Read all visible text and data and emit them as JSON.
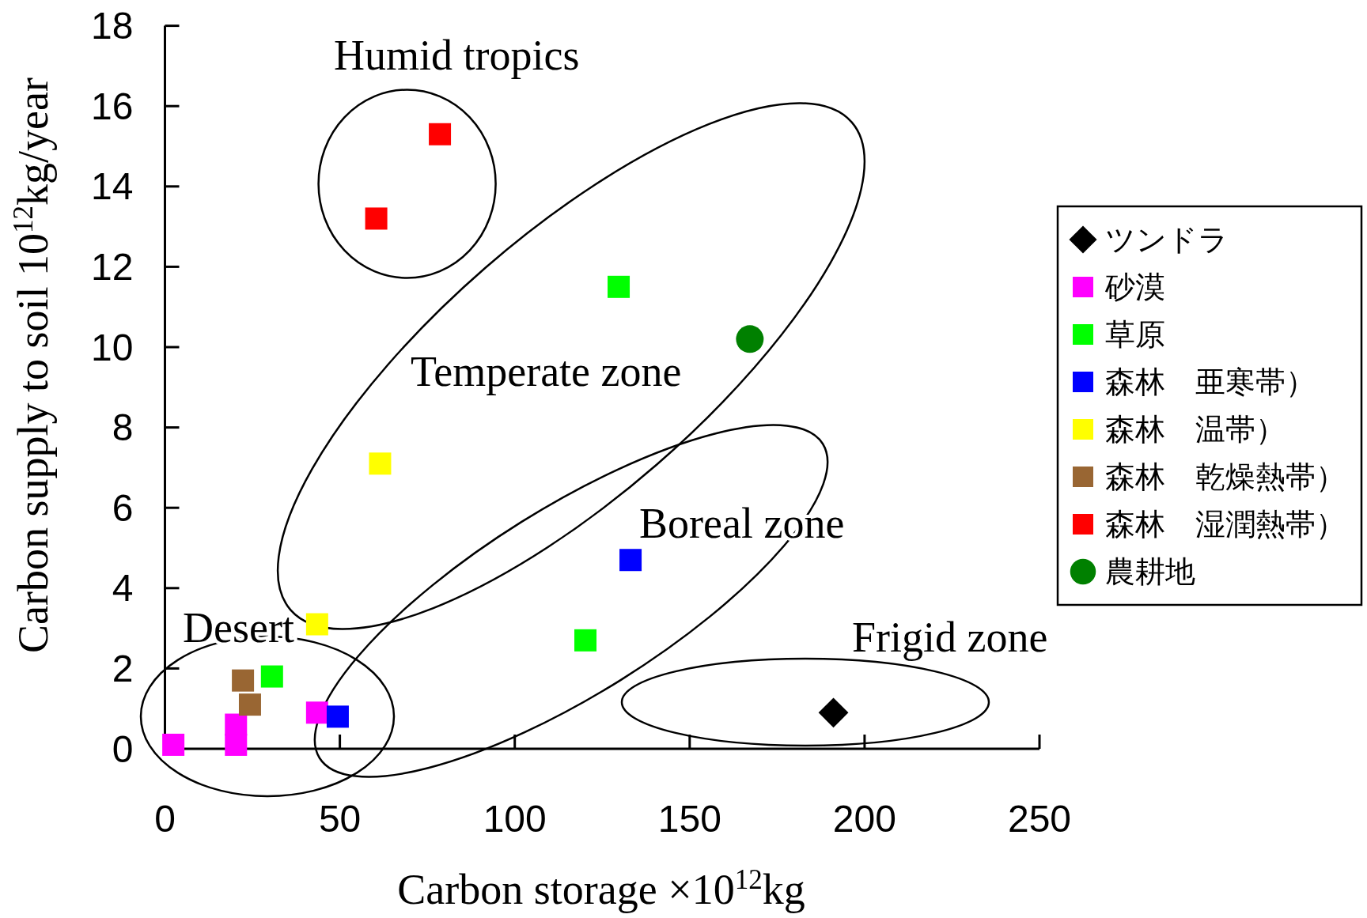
{
  "chart_data": {
    "type": "scatter",
    "xlabel": "Carbon storage  ×10$^{12}$kg",
    "ylabel": "Carbon supply to soil  10$^{12}$kg/year",
    "xlim": [
      0,
      250
    ],
    "xticks": [
      0,
      50,
      100,
      150,
      200,
      250
    ],
    "ylim": [
      0,
      18
    ],
    "yticks": [
      0,
      2,
      4,
      6,
      8,
      10,
      12,
      14,
      16,
      18
    ],
    "grid": false,
    "legend": "right",
    "series": [
      {
        "name": "ツンドラ",
        "color": "#000000",
        "marker": "diamond",
        "x": [
          191.1
        ],
        "values": [
          0.9
        ]
      },
      {
        "name": "砂漠",
        "color": "#ff00ff",
        "marker": "square",
        "x": [
          2.4,
          20.3,
          20.3,
          43.5
        ],
        "values": [
          0.1,
          0.1,
          0.6,
          0.9
        ]
      },
      {
        "name": "草原",
        "color": "#00ff00",
        "marker": "square",
        "x": [
          30.6,
          120.2,
          129.7
        ],
        "values": [
          1.8,
          2.7,
          11.5
        ]
      },
      {
        "name": "森林　亜寒帯）",
        "color": "#0000ff",
        "marker": "square",
        "x": [
          49.4,
          133.1
        ],
        "values": [
          0.8,
          4.7
        ]
      },
      {
        "name": "森林　温帯）",
        "color": "#ffff00",
        "marker": "square",
        "x": [
          43.5,
          61.5
        ],
        "values": [
          3.1,
          7.1
        ]
      },
      {
        "name": "森林　乾燥熱帯）",
        "color": "#996633",
        "marker": "square",
        "x": [
          22.3,
          24.3
        ],
        "values": [
          1.7,
          1.1
        ]
      },
      {
        "name": "森林　湿潤熱帯）",
        "color": "#ff0000",
        "marker": "square",
        "x": [
          60.4,
          78.6
        ],
        "values": [
          13.2,
          15.3
        ]
      },
      {
        "name": "農耕地",
        "color": "#008000",
        "marker": "circle",
        "x": [
          167.2
        ],
        "values": [
          10.2
        ]
      }
    ],
    "annotations": [
      "Humid tropics",
      "Temperate zone",
      "Boreal zone",
      "Desert",
      "Frigid zone"
    ]
  }
}
